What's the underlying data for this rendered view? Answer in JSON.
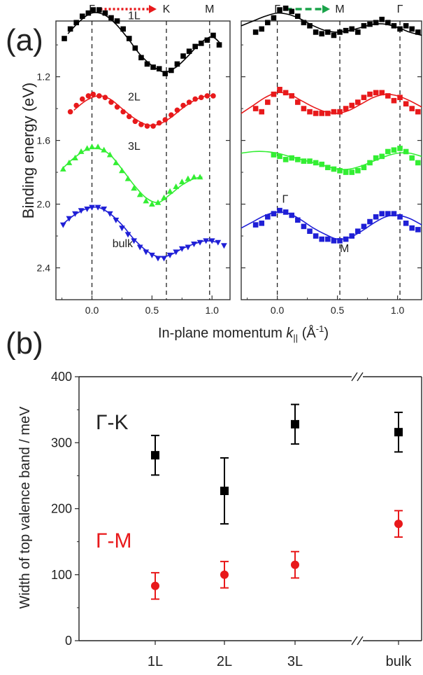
{
  "panel_a_label": "(a)",
  "panel_b_label": "(b)",
  "chart_data": [
    {
      "panel": "(a) left",
      "type": "scatter",
      "xlabel_prefix": "In-plane momentum ",
      "xlabel_var": "k",
      "xlabel_sub": "||",
      "xlabel_unit": " (Å",
      "xlabel_unit_sup": "-1",
      "xlabel_close": ")",
      "ylabel": "Binding energy (eV)",
      "xlim": [
        -0.3,
        1.15
      ],
      "ylim": [
        2.6,
        0.85
      ],
      "yticks": [
        "1.2",
        "1.6",
        "2.0",
        "2.4"
      ],
      "xticks": [
        "0.0",
        "0.5",
        "1.0"
      ],
      "top_labels": {
        "start": "Γ",
        "end": "K",
        "far": "M"
      },
      "path_color": "#e8191b",
      "vlines": [
        0.0,
        0.62,
        0.98
      ],
      "series": [
        {
          "name": "1L",
          "color": "#000000",
          "marker": "square",
          "x": [
            -0.23,
            -0.18,
            -0.13,
            -0.08,
            -0.03,
            0.01,
            0.06,
            0.11,
            0.16,
            0.21,
            0.26,
            0.31,
            0.36,
            0.41,
            0.46,
            0.51,
            0.56,
            0.61,
            0.66,
            0.71,
            0.76,
            0.81,
            0.86,
            0.91,
            0.96,
            1.01,
            1.06
          ],
          "y": [
            0.96,
            0.9,
            0.86,
            0.82,
            0.8,
            0.78,
            0.78,
            0.8,
            0.83,
            0.85,
            0.9,
            0.96,
            1.02,
            1.08,
            1.12,
            1.14,
            1.15,
            1.18,
            1.16,
            1.12,
            1.07,
            1.04,
            1.01,
            0.99,
            0.97,
            0.94,
            1.0
          ],
          "fit_x": [
            -0.2,
            -0.1,
            0.0,
            0.1,
            0.2,
            0.3,
            0.4,
            0.5,
            0.6,
            0.7,
            0.8,
            0.9,
            1.0,
            1.08
          ],
          "fit_y": [
            0.93,
            0.85,
            0.8,
            0.81,
            0.87,
            0.96,
            1.06,
            1.13,
            1.17,
            1.14,
            1.07,
            0.99,
            0.95,
            1.0
          ]
        },
        {
          "name": "2L",
          "color": "#e8191b",
          "marker": "circle",
          "x": [
            -0.18,
            -0.13,
            -0.08,
            -0.03,
            0.01,
            0.06,
            0.11,
            0.16,
            0.21,
            0.26,
            0.31,
            0.36,
            0.41,
            0.46,
            0.51,
            0.56,
            0.61,
            0.66,
            0.71,
            0.76,
            0.81,
            0.86,
            0.91,
            0.96,
            1.01
          ],
          "y": [
            1.42,
            1.38,
            1.34,
            1.32,
            1.31,
            1.32,
            1.33,
            1.36,
            1.39,
            1.42,
            1.45,
            1.48,
            1.5,
            1.51,
            1.51,
            1.49,
            1.47,
            1.44,
            1.41,
            1.38,
            1.36,
            1.34,
            1.33,
            1.32,
            1.32
          ],
          "fit_x": [
            -0.15,
            -0.05,
            0.05,
            0.15,
            0.25,
            0.35,
            0.45,
            0.55,
            0.65,
            0.75,
            0.85,
            0.95,
            1.02
          ],
          "fit_y": [
            1.41,
            1.35,
            1.32,
            1.34,
            1.4,
            1.46,
            1.5,
            1.5,
            1.46,
            1.4,
            1.35,
            1.32,
            1.32
          ]
        },
        {
          "name": "3L",
          "color": "#33ee33",
          "marker": "triangle-up",
          "x": [
            -0.24,
            -0.19,
            -0.14,
            -0.09,
            -0.04,
            0.0,
            0.05,
            0.1,
            0.15,
            0.2,
            0.25,
            0.3,
            0.35,
            0.4,
            0.45,
            0.5,
            0.55,
            0.6,
            0.65,
            0.7,
            0.75,
            0.8,
            0.85,
            0.9
          ],
          "y": [
            1.78,
            1.74,
            1.71,
            1.67,
            1.65,
            1.64,
            1.64,
            1.66,
            1.69,
            1.74,
            1.79,
            1.84,
            1.9,
            1.94,
            1.98,
            2.0,
            1.99,
            1.96,
            1.92,
            1.89,
            1.86,
            1.84,
            1.83,
            1.83
          ],
          "fit_x": [
            -0.25,
            -0.15,
            -0.05,
            0.05,
            0.15,
            0.25,
            0.35,
            0.45,
            0.55,
            0.65,
            0.75,
            0.85,
            0.92
          ],
          "fit_y": [
            1.78,
            1.71,
            1.66,
            1.65,
            1.69,
            1.78,
            1.88,
            1.96,
            1.99,
            1.94,
            1.88,
            1.84,
            1.83
          ]
        },
        {
          "name": "bulk",
          "color": "#1f1fd6",
          "marker": "triangle-down",
          "x": [
            -0.24,
            -0.19,
            -0.14,
            -0.09,
            -0.04,
            0.0,
            0.05,
            0.1,
            0.15,
            0.2,
            0.25,
            0.3,
            0.35,
            0.4,
            0.45,
            0.5,
            0.55,
            0.6,
            0.65,
            0.7,
            0.75,
            0.8,
            0.85,
            0.9,
            0.95,
            1.0,
            1.05,
            1.1
          ],
          "y": [
            2.13,
            2.09,
            2.06,
            2.04,
            2.03,
            2.02,
            2.02,
            2.03,
            2.06,
            2.1,
            2.15,
            2.19,
            2.23,
            2.27,
            2.3,
            2.32,
            2.34,
            2.34,
            2.32,
            2.3,
            2.28,
            2.27,
            2.25,
            2.24,
            2.23,
            2.23,
            2.24,
            2.26
          ],
          "fit_x": [
            -0.25,
            -0.15,
            -0.05,
            0.05,
            0.15,
            0.25,
            0.35,
            0.45,
            0.55,
            0.65,
            0.75,
            0.85,
            0.95,
            1.05
          ],
          "fit_y": [
            2.13,
            2.07,
            2.03,
            2.02,
            2.06,
            2.13,
            2.22,
            2.29,
            2.33,
            2.32,
            2.28,
            2.25,
            2.23,
            2.24
          ]
        }
      ],
      "annotations": [
        {
          "text": "1L",
          "x": 0.3,
          "y": 0.84
        },
        {
          "text": "2L",
          "x": 0.3,
          "y": 1.35
        },
        {
          "text": "3L",
          "x": 0.3,
          "y": 1.66
        },
        {
          "text": "bulk",
          "x": 0.17,
          "y": 2.27
        }
      ]
    },
    {
      "panel": "(a) right",
      "type": "scatter",
      "xlim": [
        -0.3,
        1.2
      ],
      "ylim": [
        2.6,
        0.85
      ],
      "xticks": [
        "0.0",
        "0.5",
        "1.0"
      ],
      "top_labels": {
        "start": "Γ",
        "end": "M",
        "far": "Γ"
      },
      "path_color": "#1aa34a",
      "vlines": [
        0.0,
        0.52,
        1.02
      ],
      "series": [
        {
          "name": "1L",
          "color": "#000000",
          "marker": "square",
          "x": [
            -0.18,
            -0.13,
            -0.08,
            -0.03,
            0.02,
            0.07,
            0.12,
            0.17,
            0.22,
            0.27,
            0.32,
            0.37,
            0.42,
            0.47,
            0.52,
            0.57,
            0.62,
            0.67,
            0.72,
            0.77,
            0.82,
            0.87,
            0.92,
            0.97,
            1.02,
            1.07,
            1.12,
            1.17
          ],
          "y": [
            0.92,
            0.9,
            0.86,
            0.83,
            0.78,
            0.77,
            0.79,
            0.82,
            0.86,
            0.88,
            0.92,
            0.93,
            0.92,
            0.94,
            0.92,
            0.91,
            0.9,
            0.92,
            0.88,
            0.87,
            0.86,
            0.84,
            0.86,
            0.88,
            0.9,
            0.88,
            0.9,
            0.92
          ],
          "fit_x": [
            -0.3,
            -0.2,
            -0.1,
            0.0,
            0.1,
            0.2,
            0.3,
            0.4,
            0.5,
            0.6,
            0.7,
            0.8,
            0.9,
            1.0,
            1.1,
            1.2
          ],
          "fit_y": [
            0.88,
            0.85,
            0.82,
            0.8,
            0.81,
            0.84,
            0.88,
            0.91,
            0.92,
            0.91,
            0.89,
            0.87,
            0.87,
            0.89,
            0.92,
            0.94
          ]
        },
        {
          "name": "2L",
          "color": "#e8191b",
          "marker": "square",
          "x": [
            -0.18,
            -0.13,
            -0.08,
            -0.03,
            0.02,
            0.07,
            0.12,
            0.17,
            0.22,
            0.27,
            0.32,
            0.37,
            0.42,
            0.47,
            0.52,
            0.57,
            0.62,
            0.67,
            0.72,
            0.77,
            0.82,
            0.87,
            0.92,
            0.97,
            1.02,
            1.07,
            1.12,
            1.17
          ],
          "y": [
            1.4,
            1.42,
            1.36,
            1.31,
            1.28,
            1.3,
            1.32,
            1.36,
            1.4,
            1.42,
            1.43,
            1.43,
            1.43,
            1.42,
            1.42,
            1.4,
            1.38,
            1.36,
            1.33,
            1.31,
            1.3,
            1.3,
            1.32,
            1.35,
            1.33,
            1.37,
            1.4,
            1.42
          ],
          "fit_x": [
            -0.3,
            -0.2,
            -0.1,
            0.0,
            0.1,
            0.2,
            0.3,
            0.4,
            0.5,
            0.6,
            0.7,
            0.8,
            0.9,
            1.0,
            1.1,
            1.2
          ],
          "fit_y": [
            1.43,
            1.38,
            1.33,
            1.3,
            1.31,
            1.35,
            1.39,
            1.42,
            1.43,
            1.41,
            1.37,
            1.33,
            1.31,
            1.32,
            1.35,
            1.39
          ]
        },
        {
          "name": "3L",
          "color": "#33ee33",
          "marker": "square",
          "x": [
            -0.03,
            0.02,
            0.07,
            0.12,
            0.17,
            0.22,
            0.27,
            0.32,
            0.37,
            0.42,
            0.47,
            0.52,
            0.57,
            0.62,
            0.67,
            0.72,
            0.77,
            0.82,
            0.87,
            0.92,
            0.97,
            1.02,
            1.07,
            1.12,
            1.17
          ],
          "y": [
            1.69,
            1.7,
            1.72,
            1.71,
            1.72,
            1.73,
            1.73,
            1.74,
            1.75,
            1.77,
            1.78,
            1.79,
            1.8,
            1.8,
            1.79,
            1.77,
            1.74,
            1.71,
            1.7,
            1.67,
            1.66,
            1.65,
            1.67,
            1.71,
            1.74
          ],
          "fit_x": [
            -0.3,
            -0.2,
            -0.1,
            0.0,
            0.1,
            0.2,
            0.3,
            0.4,
            0.5,
            0.6,
            0.7,
            0.8,
            0.9,
            1.0,
            1.1,
            1.2
          ],
          "fit_y": [
            1.68,
            1.67,
            1.67,
            1.68,
            1.7,
            1.72,
            1.74,
            1.76,
            1.78,
            1.78,
            1.76,
            1.73,
            1.7,
            1.68,
            1.68,
            1.7
          ]
        },
        {
          "name": "bulk",
          "color": "#1f1fd6",
          "marker": "square",
          "x": [
            -0.18,
            -0.13,
            -0.08,
            -0.03,
            0.02,
            0.07,
            0.12,
            0.17,
            0.22,
            0.27,
            0.32,
            0.37,
            0.42,
            0.47,
            0.52,
            0.57,
            0.62,
            0.67,
            0.72,
            0.77,
            0.82,
            0.87,
            0.92,
            0.97,
            1.02,
            1.07,
            1.12,
            1.17
          ],
          "y": [
            2.13,
            2.12,
            2.08,
            2.06,
            2.04,
            2.05,
            2.07,
            2.1,
            2.14,
            2.17,
            2.2,
            2.22,
            2.22,
            2.23,
            2.23,
            2.22,
            2.2,
            2.17,
            2.14,
            2.11,
            2.08,
            2.06,
            2.06,
            2.06,
            2.08,
            2.12,
            2.15,
            2.16
          ],
          "fit_x": [
            -0.3,
            -0.2,
            -0.1,
            0.0,
            0.1,
            0.2,
            0.3,
            0.4,
            0.5,
            0.6,
            0.7,
            0.8,
            0.9,
            1.0,
            1.1,
            1.2
          ],
          "fit_y": [
            2.15,
            2.11,
            2.07,
            2.05,
            2.06,
            2.1,
            2.15,
            2.19,
            2.22,
            2.21,
            2.17,
            2.12,
            2.08,
            2.07,
            2.09,
            2.13
          ]
        }
      ],
      "annotations": [
        {
          "text": "Γ",
          "x": 0.04,
          "y": 1.99
        },
        {
          "text": "M",
          "x": 0.52,
          "y": 2.3
        }
      ]
    },
    {
      "panel": "(b)",
      "type": "scatter",
      "ylabel": "Width of top valence band / meV",
      "ylim": [
        0,
        400
      ],
      "yticks": [
        "0",
        "100",
        "200",
        "300",
        "400"
      ],
      "categories": [
        "1L",
        "2L",
        "3L",
        "bulk"
      ],
      "axis_break": "//",
      "series": [
        {
          "name": "Γ-K",
          "color": "#000000",
          "marker": "square",
          "values": [
            281,
            227,
            328,
            316
          ],
          "errors": [
            30,
            50,
            30,
            30
          ]
        },
        {
          "name": "Γ-M",
          "color": "#e8191b",
          "marker": "circle",
          "values": [
            83,
            100,
            115,
            177
          ],
          "errors": [
            20,
            20,
            20,
            20
          ]
        }
      ]
    }
  ]
}
